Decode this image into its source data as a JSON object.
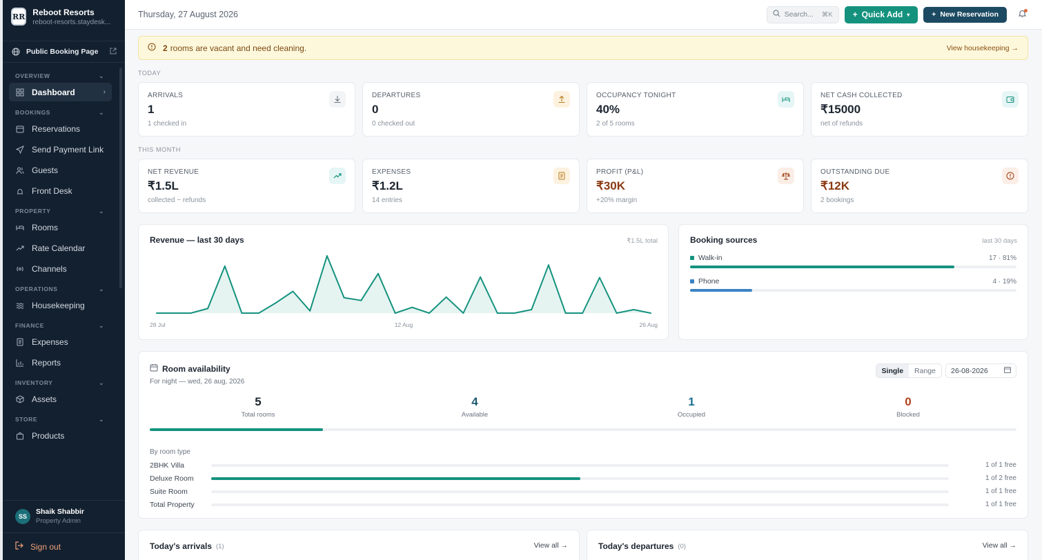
{
  "brand": {
    "name": "Reboot Resorts",
    "url": "reboot-resorts.staydesk...",
    "logo_text": "RR"
  },
  "public_booking": "Public Booking Page",
  "nav": {
    "sections": [
      {
        "label": "OVERVIEW",
        "items": [
          {
            "label": "Dashboard",
            "icon": "grid-icon",
            "active": true
          }
        ]
      },
      {
        "label": "BOOKINGS",
        "items": [
          {
            "label": "Reservations",
            "icon": "calendar-icon"
          },
          {
            "label": "Send Payment Link",
            "icon": "send-icon"
          },
          {
            "label": "Guests",
            "icon": "users-icon"
          },
          {
            "label": "Front Desk",
            "icon": "desk-icon"
          }
        ]
      },
      {
        "label": "PROPERTY",
        "items": [
          {
            "label": "Rooms",
            "icon": "bed-icon"
          },
          {
            "label": "Rate Calendar",
            "icon": "trend-icon"
          },
          {
            "label": "Channels",
            "icon": "radio-icon"
          }
        ]
      },
      {
        "label": "OPERATIONS",
        "items": [
          {
            "label": "Housekeeping",
            "icon": "waves-icon"
          }
        ]
      },
      {
        "label": "FINANCE",
        "items": [
          {
            "label": "Expenses",
            "icon": "receipt-icon"
          },
          {
            "label": "Reports",
            "icon": "chart-icon"
          }
        ]
      },
      {
        "label": "INVENTORY",
        "items": [
          {
            "label": "Assets",
            "icon": "box-icon"
          }
        ]
      },
      {
        "label": "STORE",
        "items": [
          {
            "label": "Products",
            "icon": "bag-icon"
          }
        ]
      }
    ]
  },
  "user": {
    "initials": "SS",
    "name": "Shaik Shabbir",
    "role": "Property Admin"
  },
  "sign_out": "Sign out",
  "topbar": {
    "date": "Thursday, 27 August 2026",
    "search_placeholder": "Search...",
    "search_kbd": "⌘K",
    "quick_add": "Quick Add",
    "new_reservation": "New Reservation"
  },
  "alert": {
    "count": "2",
    "text": "rooms are vacant and need cleaning.",
    "link": "View housekeeping →"
  },
  "today_label": "TODAY",
  "today_stats": [
    {
      "label": "ARRIVALS",
      "value": "1",
      "sub": "1 checked in",
      "icon": "download-icon"
    },
    {
      "label": "DEPARTURES",
      "value": "0",
      "sub": "0 checked out",
      "icon": "upload-icon"
    },
    {
      "label": "OCCUPANCY TONIGHT",
      "value": "40%",
      "sub": "2 of 5 rooms",
      "icon": "bed-icon"
    },
    {
      "label": "NET CASH COLLECTED",
      "value": "₹15000",
      "sub": "net of refunds",
      "icon": "wallet-icon"
    }
  ],
  "month_label": "THIS MONTH",
  "month_stats": [
    {
      "label": "NET REVENUE",
      "value": "₹1.5L",
      "sub": "collected − refunds",
      "icon": "trend-up-icon"
    },
    {
      "label": "EXPENSES",
      "value": "₹1.2L",
      "sub": "14 entries",
      "icon": "receipt-icon"
    },
    {
      "label": "PROFIT (P&L)",
      "value": "₹30K",
      "sub": "+20% margin",
      "icon": "scale-icon"
    },
    {
      "label": "OUTSTANDING DUE",
      "value": "₹12K",
      "sub": "2 bookings",
      "icon": "alert-icon"
    }
  ],
  "revenue": {
    "title": "Revenue — last 30 days",
    "meta": "₹1.5L total",
    "x_labels": [
      "28 Jul",
      "12 Aug",
      "26 Aug"
    ]
  },
  "chart_data": {
    "type": "area",
    "title": "Revenue — last 30 days",
    "x_tick_labels": [
      "28 Jul",
      "12 Aug",
      "26 Aug"
    ],
    "values": [
      0,
      0,
      0,
      0.08,
      0.82,
      0,
      0,
      0.18,
      0.38,
      0.04,
      1.0,
      0.27,
      0.22,
      0.69,
      0,
      0.1,
      0,
      0.28,
      0,
      0.63,
      0,
      0,
      0.06,
      0.84,
      0,
      0,
      0.62,
      0,
      0.06,
      0
    ],
    "note": "values relative to peak; axis unlabeled"
  },
  "sources": {
    "title": "Booking sources",
    "meta": "last 30 days",
    "items": [
      {
        "name": "Walk-in",
        "value": "17 · 81%",
        "pct": 81,
        "color": "#14927e"
      },
      {
        "name": "Phone",
        "value": "4 · 19%",
        "pct": 19,
        "color": "#3b82c4"
      }
    ]
  },
  "availability": {
    "title": "Room availability",
    "sub": "For night — wed, 26 aug, 2026",
    "mode_single": "Single",
    "mode_range": "Range",
    "date_value": "26-08-2026",
    "stats": [
      {
        "value": "5",
        "label": "Total rooms",
        "color": "#1c2530"
      },
      {
        "value": "4",
        "label": "Available",
        "color": "#1c5a6e"
      },
      {
        "value": "1",
        "label": "Occupied",
        "color": "#1c6f92"
      },
      {
        "value": "0",
        "label": "Blocked",
        "color": "#b0431a"
      }
    ],
    "occupied_pct": 20,
    "by_type_label": "By room type",
    "types": [
      {
        "name": "2BHK Villa",
        "free": "1 of 1 free",
        "occupied_pct": 0
      },
      {
        "name": "Deluxe Room",
        "free": "1 of 2 free",
        "occupied_pct": 50
      },
      {
        "name": "Suite Room",
        "free": "1 of 1 free",
        "occupied_pct": 0
      },
      {
        "name": "Total Property",
        "free": "1 of 1 free",
        "occupied_pct": 0
      }
    ]
  },
  "arrivals": {
    "title": "Today's arrivals",
    "count": "(1)",
    "link": "View all →"
  },
  "departures": {
    "title": "Today's departures",
    "count": "(0)",
    "link": "View all →"
  }
}
